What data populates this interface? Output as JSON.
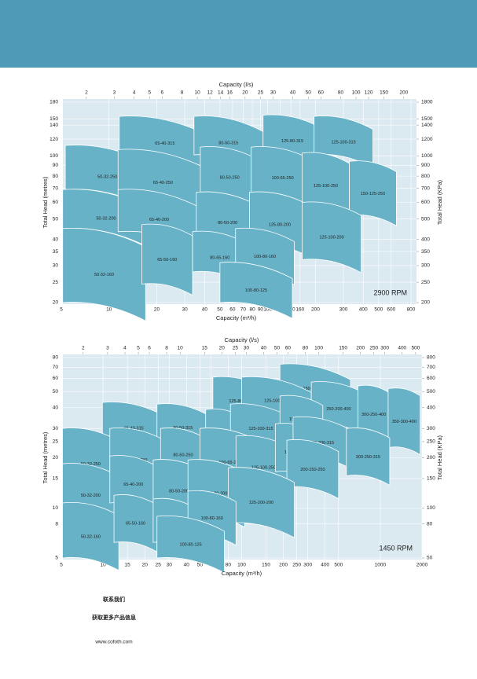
{
  "chart_data": [
    {
      "type": "coverage",
      "xlabel": "Capacity (m³/h)",
      "x2label": "Capacity (l/s)",
      "ylabel": "Total Head (metres)",
      "y2label": "Total Head (KPa)",
      "annotation": "2900 RPM",
      "log": true,
      "grid": true,
      "color": "#67b2c7",
      "xlim": [
        5,
        800
      ],
      "xticks": [
        5,
        10,
        20,
        30,
        40,
        50,
        60,
        70,
        80,
        90,
        100,
        120,
        140,
        160,
        200,
        300,
        400,
        500,
        600,
        800
      ],
      "x2lim": [
        1.39,
        222
      ],
      "x2ticks": [
        2,
        3,
        4,
        5,
        6,
        8,
        10,
        12,
        14,
        16,
        20,
        25,
        30,
        40,
        50,
        60,
        80,
        100,
        120,
        150,
        200
      ],
      "ylim": [
        20,
        180
      ],
      "yticks": [
        20,
        25,
        30,
        35,
        40,
        50,
        60,
        70,
        80,
        90,
        100,
        120,
        140,
        150,
        180
      ],
      "y2lim": [
        200,
        1800
      ],
      "y2ticks": [
        200,
        250,
        300,
        350,
        400,
        500,
        600,
        700,
        800,
        900,
        1000,
        1200,
        1400,
        1500,
        1800
      ],
      "regions": [
        {
          "name": "65-40-315",
          "x": [
            11.6,
            43.6
          ],
          "y": [
            154,
            106
          ]
        },
        {
          "name": "80-50-315",
          "x": [
            34.3,
            93.5
          ],
          "y": [
            154,
            101
          ]
        },
        {
          "name": "125-80-315",
          "x": [
            93.5,
            219
          ],
          "y": [
            156,
            102
          ]
        },
        {
          "name": "125-100-315",
          "x": [
            196,
            460
          ],
          "y": [
            154,
            101
          ]
        },
        {
          "name": "50-32-250",
          "x": [
            5.3,
            18
          ],
          "y": [
            112,
            69
          ]
        },
        {
          "name": "65-40-250",
          "x": [
            11.4,
            42
          ],
          "y": [
            107,
            64
          ]
        },
        {
          "name": "80-50-250",
          "x": [
            37.6,
            88
          ],
          "y": [
            110,
            65
          ]
        },
        {
          "name": "100-65-250",
          "x": [
            78.7,
            196
          ],
          "y": [
            110,
            65
          ]
        },
        {
          "name": "125-100-250",
          "x": [
            165,
            327
          ],
          "y": [
            103,
            56
          ]
        },
        {
          "name": "150-125-250",
          "x": [
            327,
            647
          ],
          "y": [
            94,
            52
          ]
        },
        {
          "name": "50-32-200",
          "x": [
            5.1,
            18
          ],
          "y": [
            69,
            45
          ]
        },
        {
          "name": "65-40-200",
          "x": [
            11.4,
            37.6
          ],
          "y": [
            69,
            43.5
          ]
        },
        {
          "name": "80-50-200",
          "x": [
            35.5,
            88
          ],
          "y": [
            67,
            40
          ]
        },
        {
          "name": "125-80-200",
          "x": [
            76.7,
            185
          ],
          "y": [
            67,
            38
          ]
        },
        {
          "name": "125-100-200",
          "x": [
            165,
            388
          ],
          "y": [
            60,
            32
          ]
        },
        {
          "name": "50-32-160",
          "x": [
            5.1,
            17
          ],
          "y": [
            45,
            20
          ]
        },
        {
          "name": "65-50-160",
          "x": [
            16.1,
            33.6
          ],
          "y": [
            47,
            24.5
          ]
        },
        {
          "name": "80-65-160",
          "x": [
            33.6,
            74.3
          ],
          "y": [
            43.5,
            28
          ]
        },
        {
          "name": "100-80-160",
          "x": [
            62.7,
            147
          ],
          "y": [
            45,
            28
          ]
        },
        {
          "name": "100-80-125",
          "x": [
            50,
            143
          ],
          "y": [
            31,
            20
          ]
        }
      ]
    },
    {
      "type": "coverage",
      "xlabel": "Capacity (m³/h)",
      "x2label": "Capacity (l/s)",
      "ylabel": "Total Head (metres)",
      "y2label": "Total Head (KPa)",
      "annotation": "1450 RPM",
      "log": true,
      "grid": true,
      "color": "#67b2c7",
      "xlim": [
        5,
        2000
      ],
      "xticks": [
        5,
        10,
        15,
        20,
        25,
        30,
        40,
        50,
        60,
        80,
        100,
        150,
        200,
        250,
        300,
        400,
        500,
        1000,
        2000
      ],
      "x2lim": [
        1.39,
        556
      ],
      "x2ticks": [
        2,
        3,
        4,
        5,
        6,
        8,
        10,
        15,
        20,
        25,
        30,
        40,
        50,
        60,
        80,
        100,
        150,
        200,
        250,
        300,
        400,
        500
      ],
      "ylim": [
        5,
        80
      ],
      "yticks": [
        5,
        8,
        10,
        15,
        20,
        25,
        30,
        40,
        50,
        60,
        70,
        80
      ],
      "y2lim": [
        50,
        800
      ],
      "y2ticks": [
        50,
        80,
        100,
        150,
        200,
        250,
        300,
        400,
        500,
        600,
        700,
        800
      ],
      "regions": [
        {
          "name": "150-125-400",
          "x": [
            189,
            610
          ],
          "y": [
            73,
            46
          ]
        },
        {
          "name": "125-80-400",
          "x": [
            62,
            153
          ],
          "y": [
            61,
            37
          ]
        },
        {
          "name": "125-100-400",
          "x": [
            100,
            318
          ],
          "y": [
            61,
            39
          ]
        },
        {
          "name": "250-200-400",
          "x": [
            318,
            790
          ],
          "y": [
            57,
            32
          ]
        },
        {
          "name": "300-250-400",
          "x": [
            690,
            1170
          ],
          "y": [
            54,
            27
          ]
        },
        {
          "name": "350-300-400",
          "x": [
            1140,
            1940
          ],
          "y": [
            52,
            23
          ]
        },
        {
          "name": "65-40-315",
          "x": [
            9.9,
            28
          ],
          "y": [
            43,
            25.5
          ]
        },
        {
          "name": "80-50-315",
          "x": [
            24.5,
            58
          ],
          "y": [
            42,
            25.5
          ]
        },
        {
          "name": "125-80-315",
          "x": [
            55,
            105
          ],
          "y": [
            39,
            24
          ]
        },
        {
          "name": "125-100-315",
          "x": [
            83,
            228
          ],
          "y": [
            42,
            25.5
          ]
        },
        {
          "name": "150-125-315",
          "x": [
            189,
            385
          ],
          "y": [
            47,
            28
          ]
        },
        {
          "name": "50-32-250",
          "x": [
            5.1,
            13
          ],
          "y": [
            30,
            13.3
          ]
        },
        {
          "name": "65-40-250",
          "x": [
            11.2,
            28
          ],
          "y": [
            30,
            14.8
          ]
        },
        {
          "name": "80-50-250",
          "x": [
            26,
            55
          ],
          "y": [
            30,
            16.5
          ]
        },
        {
          "name": "100-65-250",
          "x": [
            50,
            135
          ],
          "y": [
            30,
            14
          ]
        },
        {
          "name": "125-100-250",
          "x": [
            91,
            228
          ],
          "y": [
            27,
            13.3
          ]
        },
        {
          "name": "150-125-250",
          "x": [
            175,
            355
          ],
          "y": [
            32,
            16.5
          ]
        },
        {
          "name": "250-200-315",
          "x": [
            235,
            610
          ],
          "y": [
            35,
            20.5
          ]
        },
        {
          "name": "300-250-315",
          "x": [
            570,
            1170
          ],
          "y": [
            30,
            15.6
          ]
        },
        {
          "name": "200-150-250",
          "x": [
            212,
            500
          ],
          "y": [
            25.5,
            13.3
          ]
        },
        {
          "name": "50-32-200",
          "x": [
            5.1,
            13
          ],
          "y": [
            18.4,
            9.1
          ]
        },
        {
          "name": "65-40-200",
          "x": [
            11.2,
            24.5
          ],
          "y": [
            20.5,
            10.7
          ]
        },
        {
          "name": "80-50-200",
          "x": [
            23,
            54
          ],
          "y": [
            19.4,
            9.6
          ]
        },
        {
          "name": "125-80-200",
          "x": [
            41,
            105
          ],
          "y": [
            19.4,
            9.1
          ]
        },
        {
          "name": "125-200-200",
          "x": [
            80,
            240
          ],
          "y": [
            17.4,
            8.1
          ]
        },
        {
          "name": "50-32-160",
          "x": [
            5.1,
            13
          ],
          "y": [
            10.7,
            5
          ]
        },
        {
          "name": "65-50-160",
          "x": [
            12,
            24.5
          ],
          "y": [
            11.9,
            6.2
          ]
        },
        {
          "name": "80-65-160",
          "x": [
            23,
            47
          ],
          "y": [
            11.3,
            6.2
          ]
        },
        {
          "name": "100-80-160",
          "x": [
            41,
            91
          ],
          "y": [
            12.6,
            6.9
          ]
        },
        {
          "name": "100-80-125",
          "x": [
            24.5,
            75
          ],
          "y": [
            8.9,
            5
          ]
        }
      ]
    }
  ],
  "footer": {
    "lines": [
      "联系我们",
      "获取更多产品信息",
      "www.cofoth.com"
    ]
  }
}
